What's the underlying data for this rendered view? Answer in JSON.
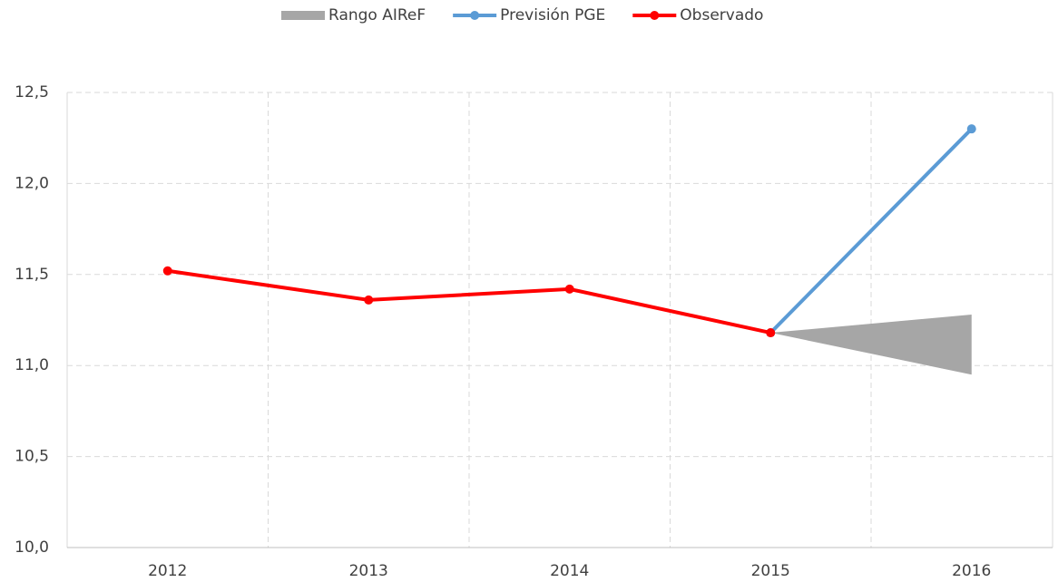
{
  "chart_data": {
    "type": "line",
    "categories": [
      "2012",
      "2013",
      "2014",
      "2015",
      "2016"
    ],
    "series": [
      {
        "name": "Rango AIReF",
        "color": "#a6a6a6",
        "kind": "range",
        "low": [
          null,
          null,
          null,
          11.18,
          10.95
        ],
        "high": [
          null,
          null,
          null,
          11.18,
          11.28
        ]
      },
      {
        "name": "Previsión PGE",
        "color": "#5b9bd5",
        "values": [
          null,
          null,
          null,
          11.18,
          12.3
        ]
      },
      {
        "name": "Observado",
        "color": "#ff0000",
        "values": [
          11.52,
          11.36,
          11.42,
          11.18,
          null
        ]
      }
    ],
    "ylim": [
      10.0,
      12.5
    ],
    "yticks": [
      {
        "value": 10.0,
        "label": "10,0"
      },
      {
        "value": 10.5,
        "label": "10,5"
      },
      {
        "value": 11.0,
        "label": "11,0"
      },
      {
        "value": 11.5,
        "label": "11,5"
      },
      {
        "value": 12.0,
        "label": "12,0"
      },
      {
        "value": 12.5,
        "label": "12,5"
      }
    ],
    "grid": true,
    "legend": "top"
  }
}
